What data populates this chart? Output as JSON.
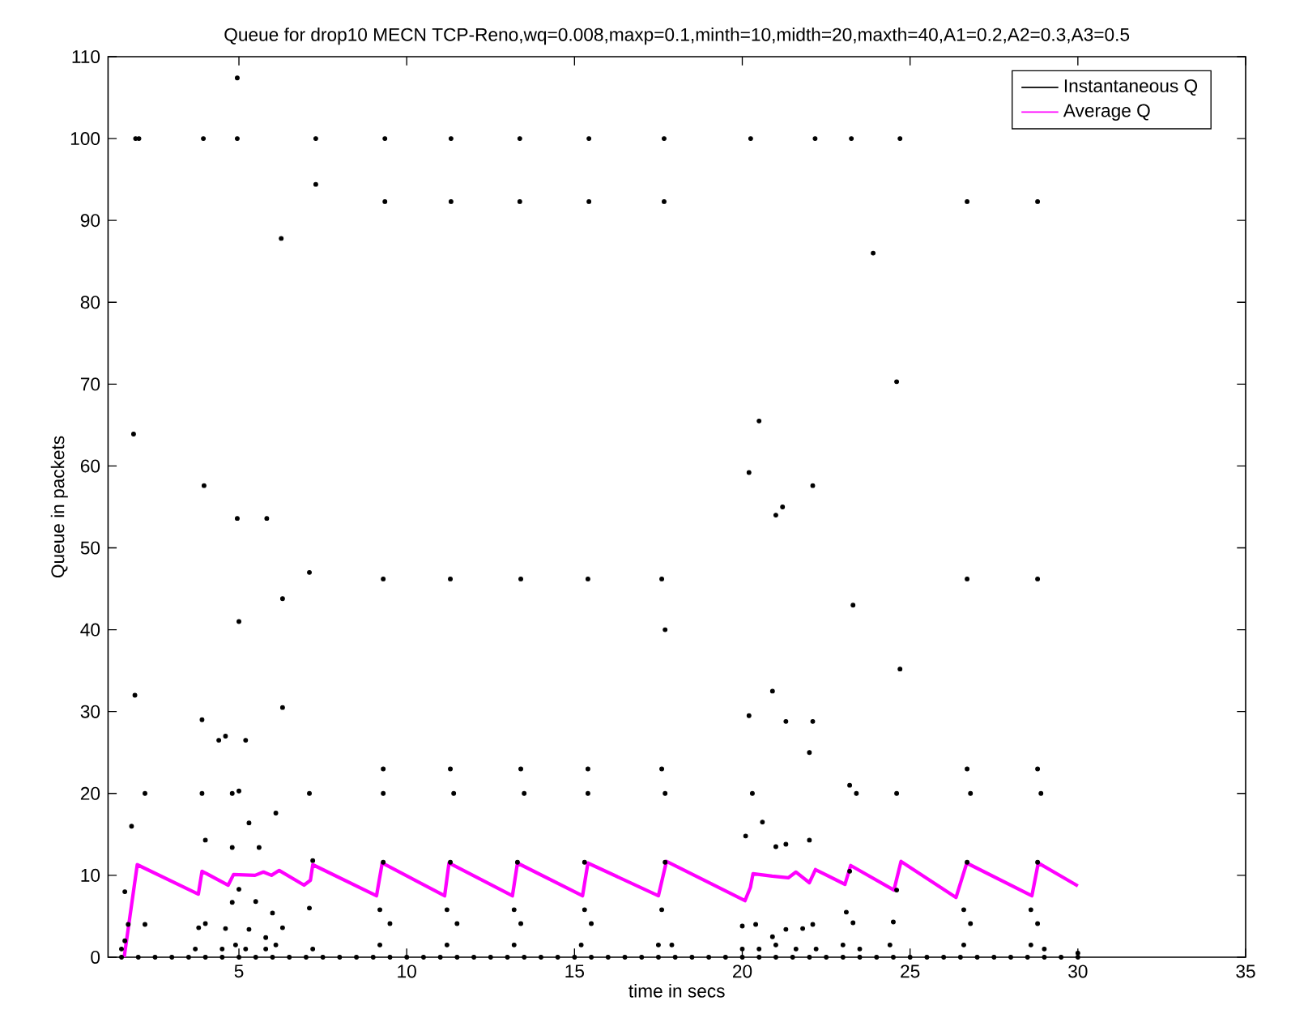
{
  "chart_data": {
    "type": "scatter",
    "title": "Queue for drop10 MECN TCP-Reno,wq=0.008,maxp=0.1,minth=10,midth=20,maxth=40,A1=0.2,A2=0.3,A3=0.5",
    "xlabel": "time in secs",
    "ylabel": "Queue in packets",
    "xlim": [
      1.1,
      35
    ],
    "xticks": [
      5,
      10,
      15,
      20,
      25,
      30,
      35
    ],
    "ylim": [
      0,
      110
    ],
    "yticks": [
      0,
      10,
      20,
      30,
      40,
      50,
      60,
      70,
      80,
      90,
      100,
      110
    ],
    "legend": "top right",
    "series": [
      {
        "name": "Instantaneous Q",
        "marker": "circle",
        "color": "#000000",
        "x": [
          1.5,
          2.0,
          2.5,
          3.0,
          3.5,
          4.0,
          4.5,
          5.0,
          5.5,
          6.0,
          6.5,
          7.0,
          7.5,
          8.0,
          8.5,
          9.0,
          9.5,
          10.0,
          10.5,
          11.0,
          11.5,
          12.0,
          12.5,
          13.0,
          13.5,
          14.0,
          14.5,
          15.0,
          15.5,
          16.0,
          16.5,
          17.0,
          17.5,
          18.0,
          18.5,
          19.0,
          19.5,
          20.0,
          20.5,
          21.0,
          21.5,
          22.0,
          22.5,
          23.0,
          23.5,
          24.0,
          24.5,
          25.0,
          25.5,
          26.0,
          26.5,
          27.0,
          27.5,
          28.0,
          28.5,
          29.0,
          29.5,
          30.0,
          1.92,
          2.02,
          3.94,
          4.95,
          7.29,
          9.35,
          11.32,
          13.37,
          15.43,
          17.67,
          20.25,
          22.17,
          23.25,
          24.7,
          4.95,
          9.35,
          11.32,
          13.37,
          15.43,
          17.67,
          26.7,
          28.8,
          7.29,
          6.26,
          23.9,
          1.86,
          3.96,
          4.95,
          5.83,
          5.0,
          6.3,
          7.1,
          9.3,
          11.3,
          13.4,
          15.4,
          17.6,
          17.7,
          20.2,
          20.5,
          21.0,
          21.2,
          22.1,
          23.3,
          26.7,
          28.8,
          24.6,
          24.7,
          1.9,
          3.9,
          4.4,
          4.6,
          5.2,
          6.3,
          2.2,
          3.9,
          4.8,
          5.0,
          7.1,
          9.3,
          9.3,
          11.3,
          11.4,
          13.4,
          13.5,
          15.4,
          15.4,
          17.6,
          17.7,
          20.2,
          20.3,
          20.9,
          21.3,
          22.1,
          22.0,
          23.2,
          23.4,
          24.6,
          26.7,
          26.8,
          28.8,
          28.9,
          1.8,
          4.0,
          4.8,
          5.3,
          5.6,
          6.1,
          20.1,
          20.6,
          21.0,
          21.3,
          22.0,
          7.2,
          9.3,
          11.3,
          13.3,
          15.3,
          17.7,
          23.2,
          24.6,
          26.7,
          28.8,
          1.6,
          1.7,
          2.2,
          3.8,
          4.0,
          4.6,
          4.8,
          5.0,
          5.3,
          5.5,
          5.8,
          6.0,
          6.3,
          7.1,
          9.2,
          9.5,
          11.2,
          11.5,
          13.2,
          13.4,
          15.3,
          15.5,
          17.6,
          20.0,
          20.4,
          20.9,
          21.3,
          21.8,
          22.1,
          23.1,
          23.3,
          24.5,
          26.6,
          26.8,
          28.6,
          28.8,
          1.5,
          1.6,
          3.7,
          4.5,
          4.9,
          5.2,
          5.8,
          6.1,
          7.2,
          9.2,
          11.2,
          13.2,
          15.2,
          17.5,
          17.9,
          20.0,
          20.5,
          21.0,
          21.6,
          22.2,
          23.0,
          23.5,
          24.4,
          26.6,
          28.6,
          29.0,
          30.0
        ],
        "values": [
          0,
          0,
          0,
          0,
          0,
          0,
          0,
          0,
          0,
          0,
          0,
          0,
          0,
          0,
          0,
          0,
          0,
          0,
          0,
          0,
          0,
          0,
          0,
          0,
          0,
          0,
          0,
          0,
          0,
          0,
          0,
          0,
          0,
          0,
          0,
          0,
          0,
          0,
          0,
          0,
          0,
          0,
          0,
          0,
          0,
          0,
          0,
          0,
          0,
          0,
          0,
          0,
          0,
          0,
          0,
          0,
          0,
          0,
          100,
          100,
          100,
          100,
          100,
          100,
          100,
          100,
          100,
          100,
          100,
          100,
          100,
          100,
          107.4,
          92.3,
          92.3,
          92.3,
          92.3,
          92.3,
          92.3,
          92.3,
          94.4,
          87.8,
          86,
          63.9,
          57.6,
          53.6,
          53.6,
          41,
          43.8,
          47,
          46.2,
          46.2,
          46.2,
          46.2,
          46.2,
          40,
          59.2,
          65.5,
          54,
          55,
          57.6,
          43,
          46.2,
          46.2,
          70.3,
          35.2,
          32,
          29,
          26.5,
          27,
          26.5,
          30.5,
          20,
          20,
          20,
          20.3,
          20,
          23,
          20,
          23,
          20,
          23,
          20,
          23,
          20,
          23,
          20,
          29.5,
          20,
          32.5,
          28.8,
          28.8,
          25,
          21,
          20,
          20,
          23,
          20,
          23,
          20,
          16,
          14.3,
          13.4,
          16.4,
          13.4,
          17.6,
          14.8,
          16.5,
          13.5,
          13.8,
          14.3,
          11.8,
          11.6,
          11.6,
          11.6,
          11.6,
          11.6,
          10.5,
          8.2,
          11.6,
          11.6,
          8,
          4,
          4,
          3.6,
          4.1,
          3.5,
          6.7,
          8.3,
          3.4,
          6.8,
          2.4,
          5.4,
          3.6,
          6,
          5.8,
          4.1,
          5.8,
          4.1,
          5.8,
          4.1,
          5.8,
          4.1,
          5.8,
          3.8,
          4,
          2.5,
          3.4,
          3.5,
          4,
          5.5,
          4.2,
          4.3,
          5.8,
          4.1,
          5.8,
          4.1,
          1,
          2,
          1,
          1,
          1.5,
          1,
          1,
          1.5,
          1,
          1.5,
          1.5,
          1.5,
          1.5,
          1.5,
          1.5,
          1,
          1,
          1.5,
          1,
          1,
          1.5,
          1,
          1.5,
          1.5,
          1.5,
          1,
          0.5
        ]
      },
      {
        "name": "Average Q",
        "type": "line",
        "color": "#ff00ff",
        "x": [
          1.58,
          1.97,
          3.79,
          3.9,
          4.68,
          4.84,
          5.48,
          5.73,
          5.97,
          6.2,
          6.94,
          7.13,
          7.2,
          9.1,
          9.27,
          11.13,
          11.26,
          13.15,
          13.3,
          15.24,
          15.4,
          17.5,
          17.74,
          20.08,
          20.24,
          20.32,
          20.89,
          21.37,
          21.6,
          22.0,
          22.18,
          23.06,
          23.23,
          24.52,
          24.73,
          26.37,
          26.69,
          28.63,
          28.82,
          30.0
        ],
        "values": [
          0,
          11.3,
          7.7,
          10.5,
          8.8,
          10.1,
          10.0,
          10.4,
          10.0,
          10.6,
          8.8,
          9.4,
          11.3,
          7.5,
          11.5,
          7.5,
          11.5,
          7.5,
          11.5,
          7.5,
          11.5,
          7.5,
          11.7,
          6.9,
          8.5,
          10.2,
          9.9,
          9.7,
          10.4,
          9.1,
          10.7,
          8.9,
          11.2,
          8.2,
          11.7,
          7.3,
          11.5,
          7.5,
          11.5,
          8.7
        ]
      }
    ]
  }
}
